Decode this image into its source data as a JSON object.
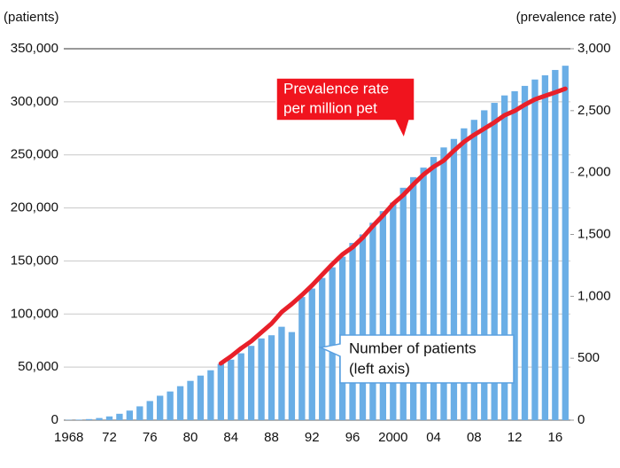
{
  "chart_data": {
    "type": "bar_line",
    "y_label": "(patients)",
    "y2_label": "(prevalence rate)",
    "categories": [
      "1968",
      null,
      null,
      null,
      "72",
      null,
      null,
      null,
      "76",
      null,
      null,
      null,
      "80",
      null,
      null,
      null,
      "84",
      null,
      null,
      null,
      "88",
      null,
      null,
      null,
      "92",
      null,
      null,
      null,
      "96",
      null,
      null,
      null,
      "2000",
      null,
      null,
      null,
      "04",
      null,
      null,
      null,
      "08",
      null,
      null,
      null,
      "12",
      null,
      null,
      null,
      "16",
      null
    ],
    "series": [
      {
        "name": "Number of patients (left axis)",
        "type": "bar",
        "color": "#6aaee6",
        "values": [
          300,
          500,
          1000,
          2000,
          3500,
          6000,
          9000,
          13000,
          18000,
          23000,
          27000,
          32000,
          37000,
          42000,
          47000,
          53000,
          57000,
          63000,
          70000,
          77000,
          80000,
          88000,
          83000,
          116000,
          124000,
          134000,
          144000,
          154000,
          167000,
          175000,
          186000,
          197000,
          205000,
          219000,
          229000,
          238000,
          248000,
          257000,
          265000,
          275000,
          283000,
          292000,
          299000,
          306000,
          310000,
          315000,
          321000,
          325000,
          330000,
          334000
        ]
      },
      {
        "name": "Prevalence rate per million pet",
        "type": "line",
        "color": "#e8202a",
        "axis": "y2",
        "values": [
          null,
          null,
          null,
          null,
          null,
          null,
          null,
          null,
          null,
          null,
          null,
          null,
          null,
          null,
          null,
          458,
          515,
          580,
          637,
          709,
          780,
          873,
          938,
          1010,
          1088,
          1174,
          1260,
          1338,
          1396,
          1474,
          1568,
          1654,
          1747,
          1818,
          1904,
          1983,
          2047,
          2097,
          2176,
          2248,
          2305,
          2355,
          2405,
          2462,
          2498,
          2548,
          2591,
          2620,
          2648,
          2677
        ]
      }
    ],
    "annotations": [
      {
        "lines": [
          "Prevalence rate",
          "per million pet"
        ]
      },
      {
        "lines": [
          "Number of patients",
          "(left axis)"
        ]
      }
    ],
    "ylim": [
      0,
      350000
    ],
    "yticks": [
      0,
      {
        "value": 50000,
        "label": "50,000"
      },
      {
        "value": 100000,
        "label": "100,000"
      },
      {
        "value": 150000,
        "label": "150,000"
      },
      {
        "value": 200000,
        "label": "200,000"
      },
      {
        "value": 250000,
        "label": "250,000"
      },
      {
        "value": 300000,
        "label": "300,000"
      },
      {
        "value": 350000,
        "label": "350,000"
      }
    ],
    "y2lim": [
      0,
      3000
    ],
    "y2ticks": [
      0,
      500,
      {
        "value": 1000,
        "label": "1,000"
      },
      {
        "value": 1500,
        "label": "1,500"
      },
      {
        "value": 2000,
        "label": "2,000"
      },
      {
        "value": 2500,
        "label": "2,500"
      },
      {
        "value": 3000,
        "label": "3,000"
      }
    ],
    "grid": true
  }
}
